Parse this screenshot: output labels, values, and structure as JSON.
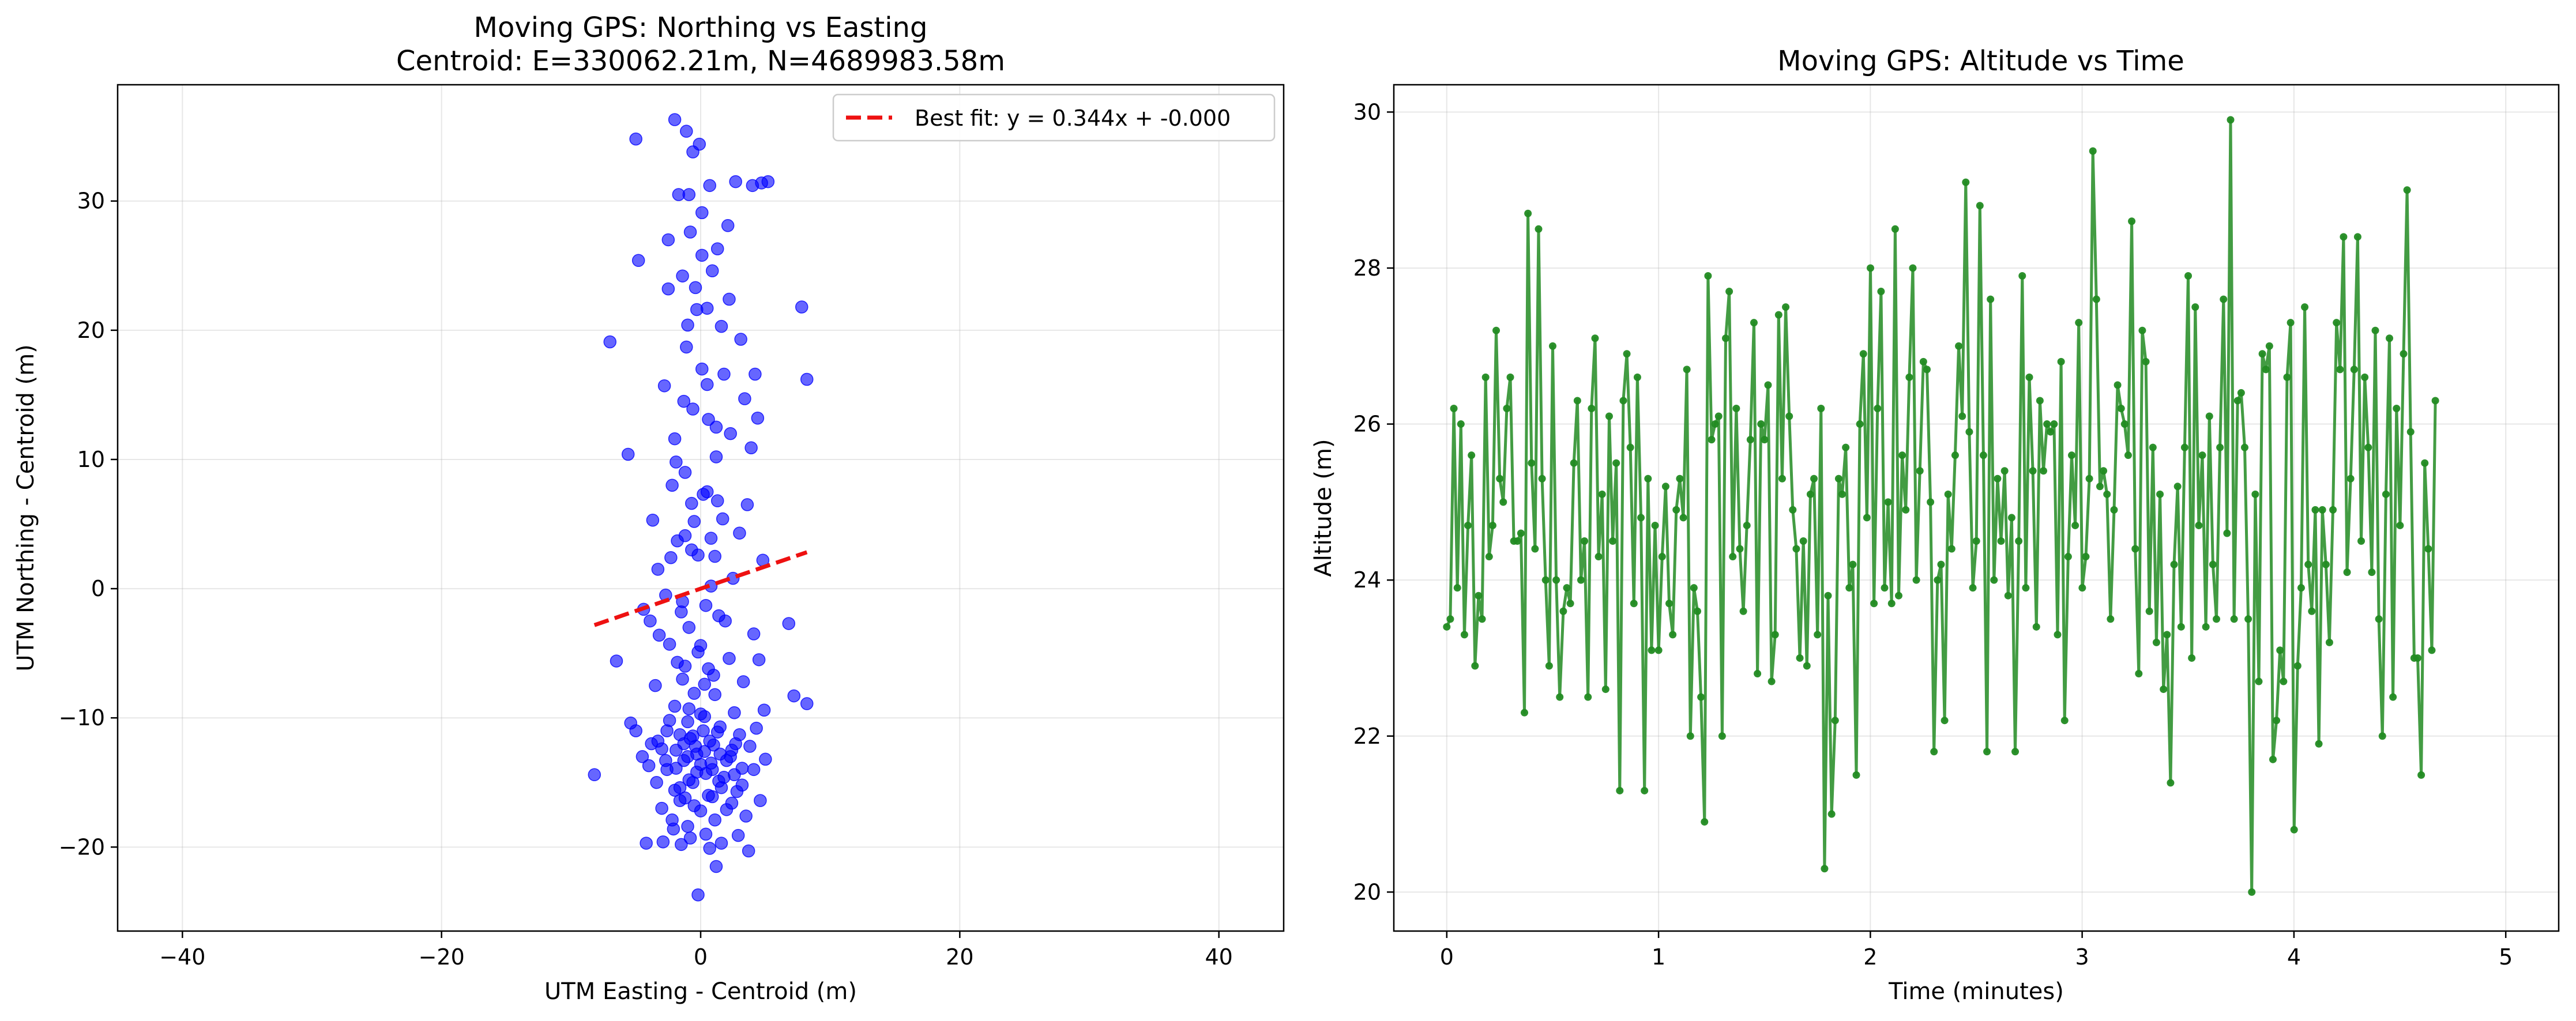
{
  "chart_data": [
    {
      "type": "scatter",
      "title": "Moving GPS: Northing vs Easting",
      "subtitle": "Centroid: E=330062.21m, N=4689983.58m",
      "xlabel": "UTM Easting - Centroid (m)",
      "ylabel": "UTM Northing - Centroid (m)",
      "xlim": [
        -45,
        45
      ],
      "ylim": [
        -26.5,
        39
      ],
      "xticks": [
        -40,
        -20,
        0,
        20,
        40
      ],
      "xtick_labels": [
        "−40",
        "−20",
        "0",
        "20",
        "40"
      ],
      "yticks": [
        -20,
        -10,
        0,
        10,
        20,
        30
      ],
      "ytick_labels": [
        "−20",
        "−10",
        "0",
        "10",
        "20",
        "30"
      ],
      "grid": true,
      "legend_position": "top-right",
      "legend": [
        {
          "label": "Best fit: y = 0.344x + -0.000",
          "style": "dashed-line",
          "color": "#ee1111"
        }
      ],
      "fit_line": {
        "slope": 0.344,
        "intercept": 0.0,
        "x_range": [
          -8.2,
          8.2
        ],
        "color": "#ee1111"
      },
      "point_color": "#0000ff",
      "points": [
        [
          -8.2,
          -14.4
        ],
        [
          -7.0,
          19.1
        ],
        [
          -6.5,
          -5.6
        ],
        [
          -5.6,
          10.4
        ],
        [
          -5.4,
          -10.4
        ],
        [
          -5.0,
          34.8
        ],
        [
          -5.0,
          -11.0
        ],
        [
          -4.8,
          25.4
        ],
        [
          -4.5,
          -13.0
        ],
        [
          -4.4,
          -1.6
        ],
        [
          -4.2,
          -19.7
        ],
        [
          -4.0,
          -13.7
        ],
        [
          -3.9,
          -2.5
        ],
        [
          -3.8,
          -12.0
        ],
        [
          -3.7,
          5.3
        ],
        [
          -3.5,
          -7.5
        ],
        [
          -3.4,
          -15.0
        ],
        [
          -3.3,
          1.5
        ],
        [
          -3.2,
          -3.6
        ],
        [
          -3.0,
          -17.0
        ],
        [
          -3.0,
          -12.4
        ],
        [
          -2.9,
          -19.6
        ],
        [
          -2.8,
          15.7
        ],
        [
          -2.7,
          -0.5
        ],
        [
          -2.6,
          -11.0
        ],
        [
          -2.6,
          -14.0
        ],
        [
          -2.5,
          27.0
        ],
        [
          -2.5,
          23.2
        ],
        [
          -2.4,
          -4.3
        ],
        [
          -2.3,
          2.4
        ],
        [
          -2.2,
          8.0
        ],
        [
          -2.1,
          -18.6
        ],
        [
          -2.0,
          36.3
        ],
        [
          -2.0,
          11.6
        ],
        [
          -2.0,
          -9.1
        ],
        [
          -1.9,
          -12.5
        ],
        [
          -1.8,
          -5.7
        ],
        [
          -1.8,
          3.7
        ],
        [
          -1.7,
          30.5
        ],
        [
          -1.6,
          -15.4
        ],
        [
          -1.6,
          -16.4
        ],
        [
          -1.5,
          -19.8
        ],
        [
          -1.4,
          24.2
        ],
        [
          -1.4,
          -1.0
        ],
        [
          -1.3,
          -13.3
        ],
        [
          -1.3,
          14.5
        ],
        [
          -1.2,
          -6.0
        ],
        [
          -1.2,
          9.0
        ],
        [
          -1.1,
          35.4
        ],
        [
          -1.0,
          -10.3
        ],
        [
          -1.0,
          20.4
        ],
        [
          -0.9,
          30.5
        ],
        [
          -0.9,
          -14.8
        ],
        [
          -0.8,
          -19.3
        ],
        [
          -0.7,
          3.0
        ],
        [
          -0.6,
          33.8
        ],
        [
          -0.6,
          -11.4
        ],
        [
          -0.5,
          -16.8
        ],
        [
          -0.5,
          5.2
        ],
        [
          -0.4,
          23.3
        ],
        [
          -0.3,
          -12.8
        ],
        [
          -0.2,
          -23.7
        ],
        [
          -0.2,
          -4.9
        ],
        [
          -0.1,
          34.4
        ],
        [
          0.0,
          -13.6
        ],
        [
          0.0,
          -17.2
        ],
        [
          0.1,
          29.1
        ],
        [
          0.1,
          17.0
        ],
        [
          0.2,
          7.3
        ],
        [
          0.3,
          -9.9
        ],
        [
          0.4,
          -19.0
        ],
        [
          0.4,
          -14.3
        ],
        [
          0.5,
          21.7
        ],
        [
          0.6,
          -6.2
        ],
        [
          0.6,
          13.1
        ],
        [
          0.7,
          31.2
        ],
        [
          0.7,
          -11.8
        ],
        [
          0.8,
          0.2
        ],
        [
          0.9,
          -16.1
        ],
        [
          1.0,
          -12.1
        ],
        [
          1.1,
          2.5
        ],
        [
          1.1,
          -8.2
        ],
        [
          1.2,
          -21.5
        ],
        [
          1.2,
          10.2
        ],
        [
          1.3,
          26.3
        ],
        [
          1.4,
          -14.9
        ],
        [
          1.5,
          -10.7
        ],
        [
          1.6,
          -19.7
        ],
        [
          1.7,
          5.4
        ],
        [
          1.8,
          16.6
        ],
        [
          1.9,
          -2.5
        ],
        [
          2.0,
          -13.3
        ],
        [
          2.0,
          -17.1
        ],
        [
          2.1,
          28.1
        ],
        [
          2.2,
          22.4
        ],
        [
          2.2,
          -5.4
        ],
        [
          2.3,
          12.0
        ],
        [
          2.4,
          -12.5
        ],
        [
          2.5,
          0.8
        ],
        [
          2.6,
          -9.6
        ],
        [
          2.7,
          31.5
        ],
        [
          2.8,
          -15.7
        ],
        [
          2.9,
          -19.1
        ],
        [
          3.0,
          4.3
        ],
        [
          3.0,
          -11.3
        ],
        [
          3.1,
          19.3
        ],
        [
          3.2,
          -13.9
        ],
        [
          3.3,
          -7.2
        ],
        [
          3.4,
          14.7
        ],
        [
          3.5,
          -17.6
        ],
        [
          3.6,
          6.5
        ],
        [
          3.7,
          -20.3
        ],
        [
          3.8,
          -12.2
        ],
        [
          3.9,
          10.9
        ],
        [
          4.0,
          31.2
        ],
        [
          4.1,
          -14.0
        ],
        [
          4.1,
          -3.5
        ],
        [
          4.2,
          16.6
        ],
        [
          4.3,
          -10.8
        ],
        [
          4.4,
          13.2
        ],
        [
          4.5,
          -5.5
        ],
        [
          4.6,
          -16.4
        ],
        [
          4.7,
          31.4
        ],
        [
          4.8,
          2.2
        ],
        [
          4.9,
          -9.4
        ],
        [
          5.0,
          -13.2
        ],
        [
          5.2,
          31.5
        ],
        [
          6.8,
          -2.7
        ],
        [
          7.2,
          -8.3
        ],
        [
          7.8,
          21.8
        ],
        [
          8.2,
          16.2
        ],
        [
          8.2,
          -8.9
        ],
        [
          -2.4,
          -10.2
        ],
        [
          -1.9,
          -13.9
        ],
        [
          -1.3,
          -12.0
        ],
        [
          -0.8,
          -11.6
        ],
        [
          -0.3,
          -14.2
        ],
        [
          0.3,
          -12.6
        ],
        [
          0.8,
          -13.5
        ],
        [
          1.3,
          -11.1
        ],
        [
          1.8,
          -14.6
        ],
        [
          2.3,
          -13.0
        ],
        [
          -1.6,
          -11.3
        ],
        [
          -1.0,
          -13.0
        ],
        [
          -0.4,
          -12.2
        ],
        [
          0.2,
          -11.0
        ],
        [
          0.9,
          -14.0
        ],
        [
          1.5,
          -12.8
        ],
        [
          -2.0,
          -15.6
        ],
        [
          -1.2,
          -16.2
        ],
        [
          -0.6,
          -15.0
        ],
        [
          0.6,
          -16.0
        ],
        [
          1.6,
          -15.4
        ],
        [
          2.6,
          -14.4
        ],
        [
          -1.5,
          -1.8
        ],
        [
          -0.9,
          -3.0
        ],
        [
          0.4,
          -1.3
        ],
        [
          1.4,
          -2.1
        ],
        [
          0.0,
          -4.4
        ],
        [
          -0.7,
          6.6
        ],
        [
          0.5,
          7.5
        ],
        [
          1.3,
          6.8
        ],
        [
          -0.2,
          2.6
        ],
        [
          0.8,
          3.9
        ],
        [
          -1.2,
          4.1
        ],
        [
          0.3,
          -7.4
        ],
        [
          -0.5,
          -8.1
        ],
        [
          1.0,
          -6.7
        ],
        [
          -1.4,
          -7.0
        ],
        [
          0.1,
          25.8
        ],
        [
          -0.8,
          27.6
        ],
        [
          0.9,
          24.6
        ],
        [
          -0.3,
          21.6
        ],
        [
          1.6,
          20.3
        ],
        [
          -1.1,
          18.7
        ],
        [
          0.5,
          15.8
        ],
        [
          -0.6,
          13.9
        ],
        [
          1.2,
          12.5
        ],
        [
          -1.9,
          9.8
        ],
        [
          0.7,
          -20.1
        ],
        [
          -1.0,
          -18.4
        ],
        [
          1.1,
          -17.9
        ],
        [
          -2.7,
          -13.3
        ],
        [
          2.7,
          -12.0
        ],
        [
          -3.3,
          -11.8
        ],
        [
          3.2,
          -15.2
        ],
        [
          -2.2,
          -17.9
        ],
        [
          2.4,
          -16.6
        ],
        [
          0.0,
          -9.7
        ],
        [
          -0.9,
          -9.3
        ]
      ]
    },
    {
      "type": "line",
      "title": "Moving GPS: Altitude vs Time",
      "xlabel": "Time (minutes)",
      "ylabel": "Altitude (m)",
      "xlim": [
        -0.25,
        5.25
      ],
      "ylim": [
        19.5,
        30.35
      ],
      "xticks": [
        0,
        1,
        2,
        3,
        4,
        5
      ],
      "xtick_labels": [
        "0",
        "1",
        "2",
        "3",
        "4",
        "5"
      ],
      "yticks": [
        20,
        22,
        24,
        26,
        28,
        30
      ],
      "ytick_labels": [
        "20",
        "22",
        "24",
        "26",
        "28",
        "30"
      ],
      "grid": true,
      "line_color": "#228b22",
      "x_start": 0,
      "x_step": 0.01667,
      "values": [
        23.4,
        23.5,
        26.2,
        23.9,
        26.0,
        23.3,
        24.7,
        25.6,
        22.9,
        23.8,
        23.5,
        26.6,
        24.3,
        24.7,
        27.2,
        25.3,
        25.0,
        26.2,
        26.6,
        24.5,
        24.5,
        24.6,
        22.3,
        28.7,
        25.5,
        24.4,
        28.5,
        25.3,
        24.0,
        22.9,
        27.0,
        24.0,
        22.5,
        23.6,
        23.9,
        23.7,
        25.5,
        26.3,
        24.0,
        24.5,
        22.5,
        26.2,
        27.1,
        24.3,
        25.1,
        22.6,
        26.1,
        24.5,
        25.5,
        21.3,
        26.3,
        26.9,
        25.7,
        23.7,
        26.6,
        24.8,
        21.3,
        25.3,
        23.1,
        24.7,
        23.1,
        24.3,
        25.2,
        23.7,
        23.3,
        24.9,
        25.3,
        24.8,
        26.7,
        22.0,
        23.9,
        23.6,
        22.5,
        20.9,
        27.9,
        25.8,
        26.0,
        26.1,
        22.0,
        27.1,
        27.7,
        24.3,
        26.2,
        24.4,
        23.6,
        24.7,
        25.8,
        27.3,
        22.8,
        26.0,
        25.8,
        26.5,
        22.7,
        23.3,
        27.4,
        25.3,
        27.5,
        26.1,
        24.9,
        24.4,
        23.0,
        24.5,
        22.9,
        25.1,
        25.3,
        23.3,
        26.2,
        20.3,
        23.8,
        21.0,
        22.2,
        25.3,
        25.1,
        25.7,
        23.9,
        24.2,
        21.5,
        26.0,
        26.9,
        24.8,
        28.0,
        23.7,
        26.2,
        27.7,
        23.9,
        25.0,
        23.7,
        28.5,
        23.8,
        25.6,
        24.9,
        26.6,
        28.0,
        24.0,
        25.4,
        26.8,
        26.7,
        25.0,
        21.8,
        24.0,
        24.2,
        22.2,
        25.1,
        24.4,
        25.6,
        27.0,
        26.1,
        29.1,
        25.9,
        23.9,
        24.5,
        28.8,
        25.6,
        21.8,
        27.6,
        24.0,
        25.3,
        24.5,
        25.4,
        23.8,
        24.8,
        21.8,
        24.5,
        27.9,
        23.9,
        26.6,
        25.4,
        23.4,
        26.3,
        25.4,
        26.0,
        25.9,
        26.0,
        23.3,
        26.8,
        22.2,
        24.3,
        25.6,
        24.7,
        27.3,
        23.9,
        24.3,
        25.3,
        29.5,
        27.6,
        25.2,
        25.4,
        25.1,
        23.5,
        24.9,
        26.5,
        26.2,
        26.0,
        25.6,
        28.6,
        24.4,
        22.8,
        27.2,
        26.8,
        23.6,
        25.7,
        23.2,
        25.1,
        22.6,
        23.3,
        21.4,
        24.2,
        25.2,
        23.4,
        25.7,
        27.9,
        23.0,
        27.5,
        24.7,
        25.6,
        23.4,
        26.1,
        24.2,
        23.5,
        25.7,
        27.6,
        24.6,
        29.9,
        23.5,
        26.3,
        26.4,
        25.7,
        23.5,
        20.0,
        25.1,
        22.7,
        26.9,
        26.7,
        27.0,
        21.7,
        22.2,
        23.1,
        22.7,
        26.6,
        27.3,
        20.8,
        22.9,
        23.9,
        27.5,
        24.2,
        23.6,
        24.9,
        21.9,
        24.9,
        24.2,
        23.2,
        24.9,
        27.3,
        26.7,
        28.4,
        24.1,
        25.3,
        26.7,
        28.4,
        24.5,
        26.6,
        25.7,
        24.1,
        27.2,
        23.5,
        22.0,
        25.1,
        27.1,
        22.5,
        26.2,
        24.7,
        26.9,
        29.0,
        25.9,
        23.0,
        23.0,
        21.5,
        25.5,
        24.4,
        23.1,
        26.3
      ]
    }
  ]
}
